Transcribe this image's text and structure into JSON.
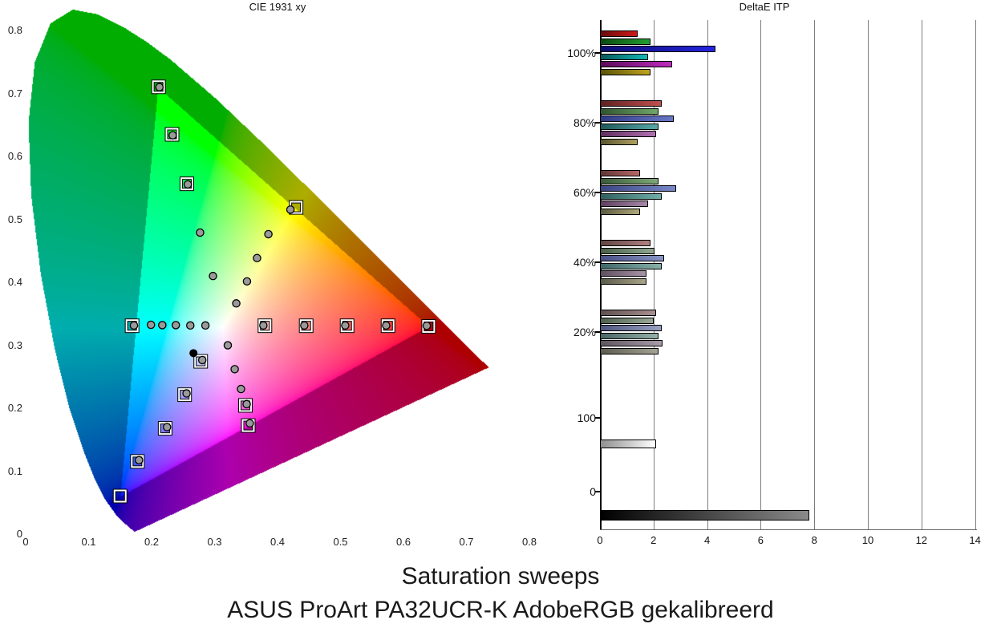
{
  "page": {
    "caption_line1": "Saturation sweeps",
    "caption_line2": "ASUS ProArt PA32UCR-K AdobeRGB gekalibreerd"
  },
  "chart_data": [
    {
      "type": "scatter",
      "title": "CIE 1931 xy",
      "xlabel": "",
      "ylabel": "",
      "xlim": [
        0,
        0.8
      ],
      "ylim": [
        0,
        0.835
      ],
      "grid": false,
      "x_ticks": [
        0,
        0.1,
        0.2,
        0.3,
        0.4,
        0.5,
        0.6,
        0.7,
        0.8
      ],
      "y_ticks": [
        0,
        0.1,
        0.2,
        0.3,
        0.4,
        0.5,
        0.6,
        0.7,
        0.8
      ],
      "gamut_name": "AdobeRGB",
      "gamut_triangle": {
        "red": [
          0.64,
          0.33
        ],
        "green": [
          0.21,
          0.71
        ],
        "blue": [
          0.15,
          0.06
        ]
      },
      "white_point": [
        0.3127,
        0.329
      ],
      "measured_white": [
        0.2665,
        0.2875
      ],
      "targets": [
        {
          "name": "red",
          "points": [
            [
              0.38,
              0.331
            ],
            [
              0.4455,
              0.331
            ],
            [
              0.5105,
              0.331
            ],
            [
              0.5755,
              0.331
            ],
            [
              0.64,
              0.33
            ]
          ]
        },
        {
          "name": "cyan",
          "points": [
            [
              0.169,
              0.331
            ]
          ]
        },
        {
          "name": "green",
          "points": [
            [
              0.256,
              0.5565
            ],
            [
              0.2325,
              0.635
            ],
            [
              0.211,
              0.7105
            ]
          ]
        },
        {
          "name": "yellow",
          "points": [
            [
              0.4295,
              0.519
            ]
          ]
        },
        {
          "name": "blue",
          "points": [
            [
              0.278,
              0.2745
            ],
            [
              0.2525,
              0.2215
            ],
            [
              0.2215,
              0.168
            ],
            [
              0.1775,
              0.1155
            ],
            [
              0.15,
              0.0605
            ]
          ]
        },
        {
          "name": "magenta",
          "points": [
            [
              0.349,
              0.2045
            ],
            [
              0.3535,
              0.1725
            ]
          ]
        }
      ],
      "measurements": [
        {
          "name": "red",
          "points": [
            [
              0.3775,
              0.3315
            ],
            [
              0.4425,
              0.3315
            ],
            [
              0.5075,
              0.3315
            ],
            [
              0.5725,
              0.3315
            ],
            [
              0.637,
              0.331
            ]
          ]
        },
        {
          "name": "cyan",
          "points": [
            [
              0.2855,
              0.3315
            ],
            [
              0.2615,
              0.3315
            ],
            [
              0.2385,
              0.332
            ],
            [
              0.217,
              0.332
            ],
            [
              0.199,
              0.3325
            ],
            [
              0.172,
              0.3315
            ]
          ]
        },
        {
          "name": "green",
          "points": [
            [
              0.2975,
              0.41
            ],
            [
              0.277,
              0.479
            ],
            [
              0.2575,
              0.5555
            ],
            [
              0.2335,
              0.6335
            ],
            [
              0.2125,
              0.71
            ]
          ]
        },
        {
          "name": "yellow",
          "points": [
            [
              0.3345,
              0.3665
            ],
            [
              0.3515,
              0.4015
            ],
            [
              0.3675,
              0.4385
            ],
            [
              0.3855,
              0.4765
            ],
            [
              0.4205,
              0.5155
            ]
          ]
        },
        {
          "name": "blue",
          "points": [
            [
              0.2805,
              0.2765
            ],
            [
              0.2555,
              0.2235
            ],
            [
              0.2245,
              0.17
            ],
            [
              0.18,
              0.1175
            ]
          ]
        },
        {
          "name": "magenta",
          "points": [
            [
              0.321,
              0.3
            ],
            [
              0.332,
              0.262
            ],
            [
              0.342,
              0.2305
            ],
            [
              0.351,
              0.2065
            ],
            [
              0.356,
              0.176
            ]
          ]
        }
      ],
      "spectral_locus": [
        [
          0.1741,
          0.005
        ],
        [
          0.1714,
          0.0051
        ],
        [
          0.1644,
          0.0109
        ],
        [
          0.1566,
          0.0177
        ],
        [
          0.144,
          0.0297
        ],
        [
          0.1241,
          0.0578
        ],
        [
          0.1096,
          0.0868
        ],
        [
          0.0913,
          0.1327
        ],
        [
          0.0687,
          0.2007
        ],
        [
          0.0454,
          0.295
        ],
        [
          0.0235,
          0.4127
        ],
        [
          0.0082,
          0.5384
        ],
        [
          0.0039,
          0.6548
        ],
        [
          0.0139,
          0.7502
        ],
        [
          0.0389,
          0.812
        ],
        [
          0.0743,
          0.8338
        ],
        [
          0.1142,
          0.8262
        ],
        [
          0.1547,
          0.8059
        ],
        [
          0.1929,
          0.7816
        ],
        [
          0.2296,
          0.7543
        ],
        [
          0.3016,
          0.6923
        ],
        [
          0.3731,
          0.6245
        ],
        [
          0.4441,
          0.5547
        ],
        [
          0.5125,
          0.4866
        ],
        [
          0.5752,
          0.4242
        ],
        [
          0.627,
          0.3725
        ],
        [
          0.6658,
          0.334
        ],
        [
          0.6915,
          0.3083
        ],
        [
          0.7079,
          0.292
        ],
        [
          0.719,
          0.2809
        ],
        [
          0.726,
          0.274
        ],
        [
          0.7334,
          0.2666
        ],
        [
          0.7347,
          0.2653
        ]
      ]
    },
    {
      "type": "bar",
      "title": "DeltaE ITP",
      "orientation": "horizontal",
      "xlim": [
        0,
        14.8
      ],
      "x_ticks": [
        0,
        2,
        4,
        6,
        8,
        10,
        12,
        14
      ],
      "grid": true,
      "groups": [
        {
          "label": "100%",
          "bars": [
            {
              "name": "red",
              "value": 1.4,
              "from": "#6b0a0a",
              "to": "#cf1a1a"
            },
            {
              "name": "green",
              "value": 1.9,
              "from": "#0a4a10",
              "to": "#22a030"
            },
            {
              "name": "blue",
              "value": 4.3,
              "from": "#0a0a72",
              "to": "#2525e0"
            },
            {
              "name": "cyan",
              "value": 1.8,
              "from": "#065a5a",
              "to": "#12b8b8"
            },
            {
              "name": "magenta",
              "value": 2.7,
              "from": "#5a0a5a",
              "to": "#c02cc0"
            },
            {
              "name": "yellow",
              "value": 1.9,
              "from": "#5a5208",
              "to": "#bfa31e"
            }
          ]
        },
        {
          "label": "80%",
          "bars": [
            {
              "name": "red",
              "value": 2.3,
              "from": "#5f2020",
              "to": "#c05050"
            },
            {
              "name": "green",
              "value": 2.2,
              "from": "#2f5530",
              "to": "#6fa868"
            },
            {
              "name": "blue",
              "value": 2.75,
              "from": "#2f3a85",
              "to": "#6878c8"
            },
            {
              "name": "cyan",
              "value": 2.2,
              "from": "#1f5a5a",
              "to": "#58a8a8"
            },
            {
              "name": "magenta",
              "value": 2.1,
              "from": "#5f2f5f",
              "to": "#b070b0"
            },
            {
              "name": "yellow",
              "value": 1.4,
              "from": "#5a5530",
              "to": "#b0a060"
            }
          ]
        },
        {
          "label": "60%",
          "bars": [
            {
              "name": "red",
              "value": 1.5,
              "from": "#603535",
              "to": "#b86868"
            },
            {
              "name": "green",
              "value": 2.2,
              "from": "#3a5a3a",
              "to": "#80a878"
            },
            {
              "name": "blue",
              "value": 2.85,
              "from": "#3a4585",
              "to": "#7888c8"
            },
            {
              "name": "cyan",
              "value": 2.3,
              "from": "#2f6060",
              "to": "#70b0a8"
            },
            {
              "name": "magenta",
              "value": 1.8,
              "from": "#5f3f5f",
              "to": "#a888a8"
            },
            {
              "name": "yellow",
              "value": 1.5,
              "from": "#5a5a40",
              "to": "#b0a878"
            }
          ]
        },
        {
          "label": "40%",
          "bars": [
            {
              "name": "red",
              "value": 1.9,
              "from": "#604545",
              "to": "#b08080"
            },
            {
              "name": "green",
              "value": 2.05,
              "from": "#485f48",
              "to": "#90a890"
            },
            {
              "name": "blue",
              "value": 2.4,
              "from": "#484f85",
              "to": "#8895c5"
            },
            {
              "name": "cyan",
              "value": 2.3,
              "from": "#406868",
              "to": "#88b0a8"
            },
            {
              "name": "magenta",
              "value": 1.75,
              "from": "#5f4f5f",
              "to": "#a895a8"
            },
            {
              "name": "yellow",
              "value": 1.75,
              "from": "#5a5a4a",
              "to": "#aaa488"
            }
          ]
        },
        {
          "label": "20%",
          "bars": [
            {
              "name": "red",
              "value": 2.1,
              "from": "#605050",
              "to": "#a89090"
            },
            {
              "name": "green",
              "value": 2.0,
              "from": "#50604f",
              "to": "#98a895"
            },
            {
              "name": "blue",
              "value": 2.3,
              "from": "#50557f",
              "to": "#98a0c2"
            },
            {
              "name": "cyan",
              "value": 2.2,
              "from": "#4a6565",
              "to": "#95b0a8"
            },
            {
              "name": "magenta",
              "value": 2.35,
              "from": "#5f555f",
              "to": "#a89ca8"
            },
            {
              "name": "yellow",
              "value": 2.2,
              "from": "#5c5c50",
              "to": "#a5a392"
            }
          ]
        },
        {
          "label": "100",
          "bars": [
            {
              "name": "white",
              "value": 2.1,
              "from": "#8f8f8f",
              "to": "#ffffff"
            }
          ]
        },
        {
          "label": "0",
          "bars": [
            {
              "name": "black",
              "value": 7.8,
              "from": "#000000",
              "to": "#8a8a8a"
            }
          ]
        }
      ]
    }
  ]
}
